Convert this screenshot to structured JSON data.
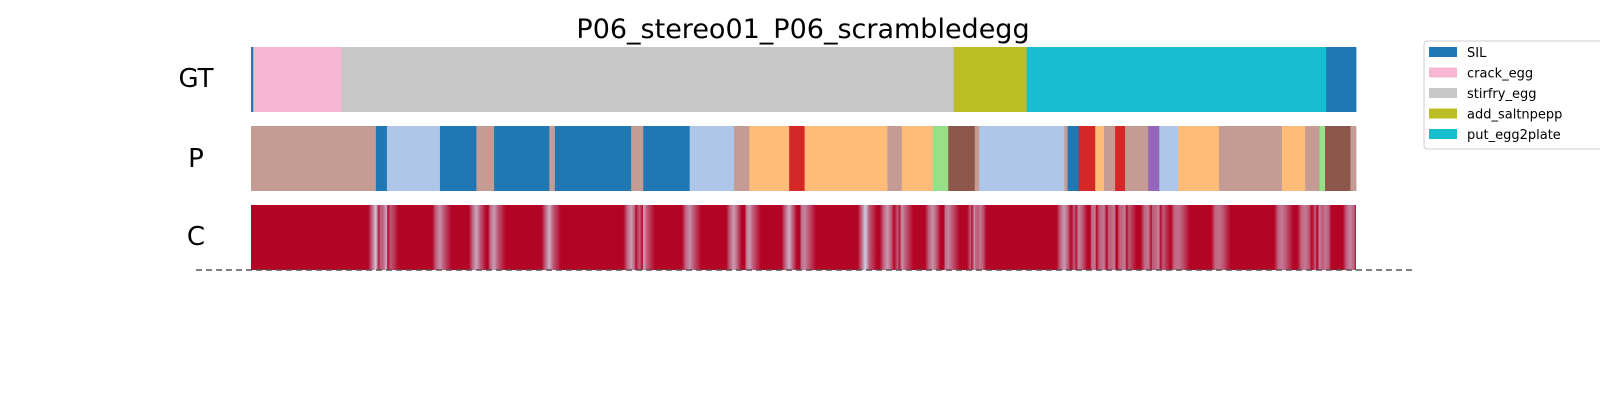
{
  "chart_data": {
    "type": "segmentation_timeline",
    "title": "P06_stereo01_P06_scrambledegg",
    "rows": [
      "GT",
      "P",
      "C"
    ],
    "x_range": [
      0,
      1000
    ],
    "legend": {
      "position": "top-right",
      "entries": [
        {
          "label": "SIL",
          "color": "#1f77b4"
        },
        {
          "label": "crack_egg",
          "color": "#f7b6d2"
        },
        {
          "label": "stirfry_egg",
          "color": "#c7c7c7"
        },
        {
          "label": "add_saltnpepp",
          "color": "#bcbd22"
        },
        {
          "label": "put_egg2plate",
          "color": "#17becf"
        }
      ]
    },
    "gt_segments": [
      {
        "start": 0,
        "end": 2,
        "color": "#1f77b4"
      },
      {
        "start": 2,
        "end": 82,
        "color": "#f7b6d2"
      },
      {
        "start": 82,
        "end": 636,
        "color": "#c7c7c7"
      },
      {
        "start": 636,
        "end": 702,
        "color": "#bcbd22"
      },
      {
        "start": 702,
        "end": 973,
        "color": "#17becf"
      },
      {
        "start": 973,
        "end": 1000,
        "color": "#1f77b4"
      }
    ],
    "pred_segments": [
      {
        "start": 0,
        "end": 113,
        "color": "#c49c94"
      },
      {
        "start": 113,
        "end": 123,
        "color": "#1f77b4"
      },
      {
        "start": 123,
        "end": 171,
        "color": "#aec7e8"
      },
      {
        "start": 171,
        "end": 204,
        "color": "#1f77b4"
      },
      {
        "start": 204,
        "end": 220,
        "color": "#c49c94"
      },
      {
        "start": 220,
        "end": 270,
        "color": "#1f77b4"
      },
      {
        "start": 270,
        "end": 275,
        "color": "#c49c94"
      },
      {
        "start": 275,
        "end": 344,
        "color": "#1f77b4"
      },
      {
        "start": 344,
        "end": 355,
        "color": "#c49c94"
      },
      {
        "start": 355,
        "end": 397,
        "color": "#1f77b4"
      },
      {
        "start": 397,
        "end": 437,
        "color": "#aec7e8"
      },
      {
        "start": 437,
        "end": 451,
        "color": "#c49c94"
      },
      {
        "start": 451,
        "end": 487,
        "color": "#ffbb78"
      },
      {
        "start": 487,
        "end": 501,
        "color": "#d62728"
      },
      {
        "start": 501,
        "end": 576,
        "color": "#ffbb78"
      },
      {
        "start": 576,
        "end": 589,
        "color": "#c49c94"
      },
      {
        "start": 589,
        "end": 617,
        "color": "#ffbb78"
      },
      {
        "start": 617,
        "end": 631,
        "color": "#98df8a"
      },
      {
        "start": 631,
        "end": 655,
        "color": "#8c564b"
      },
      {
        "start": 655,
        "end": 659,
        "color": "#c49c94"
      },
      {
        "start": 659,
        "end": 736,
        "color": "#aec7e8"
      },
      {
        "start": 736,
        "end": 739,
        "color": "#c49c94"
      },
      {
        "start": 739,
        "end": 749,
        "color": "#1f77b4"
      },
      {
        "start": 749,
        "end": 764,
        "color": "#d62728"
      },
      {
        "start": 764,
        "end": 772,
        "color": "#ffbb78"
      },
      {
        "start": 772,
        "end": 782,
        "color": "#c49c94"
      },
      {
        "start": 782,
        "end": 791,
        "color": "#d62728"
      },
      {
        "start": 791,
        "end": 812,
        "color": "#c49c94"
      },
      {
        "start": 812,
        "end": 822,
        "color": "#9467bd"
      },
      {
        "start": 822,
        "end": 839,
        "color": "#aec7e8"
      },
      {
        "start": 839,
        "end": 876,
        "color": "#ffbb78"
      },
      {
        "start": 876,
        "end": 933,
        "color": "#c49c94"
      },
      {
        "start": 933,
        "end": 954,
        "color": "#ffbb78"
      },
      {
        "start": 954,
        "end": 967,
        "color": "#c49c94"
      },
      {
        "start": 967,
        "end": 972,
        "color": "#98df8a"
      },
      {
        "start": 972,
        "end": 995,
        "color": "#8c564b"
      },
      {
        "start": 995,
        "end": 1000,
        "color": "#c49c94"
      }
    ],
    "confidence_color": "#b40426",
    "confidence_dips": [
      {
        "at": 113,
        "level": 0.1
      },
      {
        "at": 123,
        "level": 0.2
      },
      {
        "at": 171,
        "level": 0.35
      },
      {
        "at": 204,
        "level": 0.25
      },
      {
        "at": 220,
        "level": 0.3
      },
      {
        "at": 270,
        "level": 0.2
      },
      {
        "at": 344,
        "level": 0.3
      },
      {
        "at": 355,
        "level": 0.25
      },
      {
        "at": 397,
        "level": 0.35
      },
      {
        "at": 437,
        "level": 0.3
      },
      {
        "at": 451,
        "level": 0.3
      },
      {
        "at": 487,
        "level": 0.2
      },
      {
        "at": 501,
        "level": 0.4
      },
      {
        "at": 556,
        "level": 0.05
      },
      {
        "at": 576,
        "level": 0.3
      },
      {
        "at": 589,
        "level": 0.35
      },
      {
        "at": 617,
        "level": 0.35
      },
      {
        "at": 631,
        "level": 0.4
      },
      {
        "at": 655,
        "level": 0.3
      },
      {
        "at": 659,
        "level": 0.45
      },
      {
        "at": 736,
        "level": 0.3
      },
      {
        "at": 749,
        "level": 0.4
      },
      {
        "at": 764,
        "level": 0.45
      },
      {
        "at": 772,
        "level": 0.45
      },
      {
        "at": 782,
        "level": 0.45
      },
      {
        "at": 791,
        "level": 0.45
      },
      {
        "at": 812,
        "level": 0.45
      },
      {
        "at": 822,
        "level": 0.4
      },
      {
        "at": 839,
        "level": 0.5
      },
      {
        "at": 876,
        "level": 0.5
      },
      {
        "at": 933,
        "level": 0.45
      },
      {
        "at": 954,
        "level": 0.45
      },
      {
        "at": 967,
        "level": 0.4
      },
      {
        "at": 972,
        "level": 0.45
      },
      {
        "at": 995,
        "level": 0.4
      }
    ]
  }
}
